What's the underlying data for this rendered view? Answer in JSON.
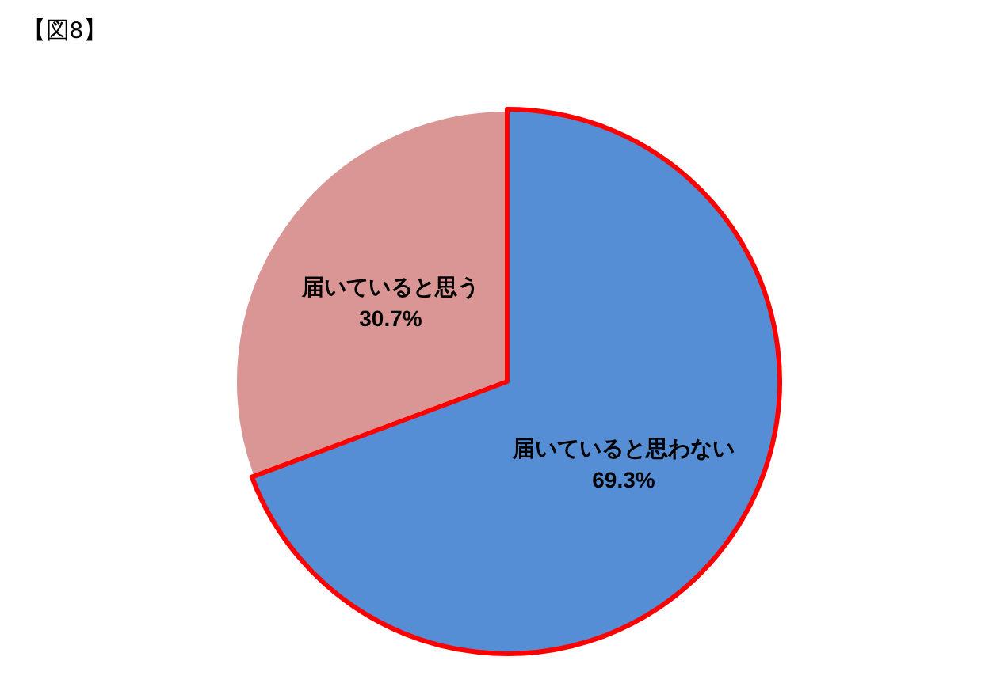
{
  "chart_data": {
    "type": "pie",
    "title": "【図8】",
    "categories": [
      "届いていると思わない",
      "届いていると思う"
    ],
    "values": [
      69.3,
      30.7
    ],
    "value_labels": [
      "69.3%",
      "30.7%"
    ],
    "colors": [
      "#558ed5",
      "#d99694"
    ]
  }
}
